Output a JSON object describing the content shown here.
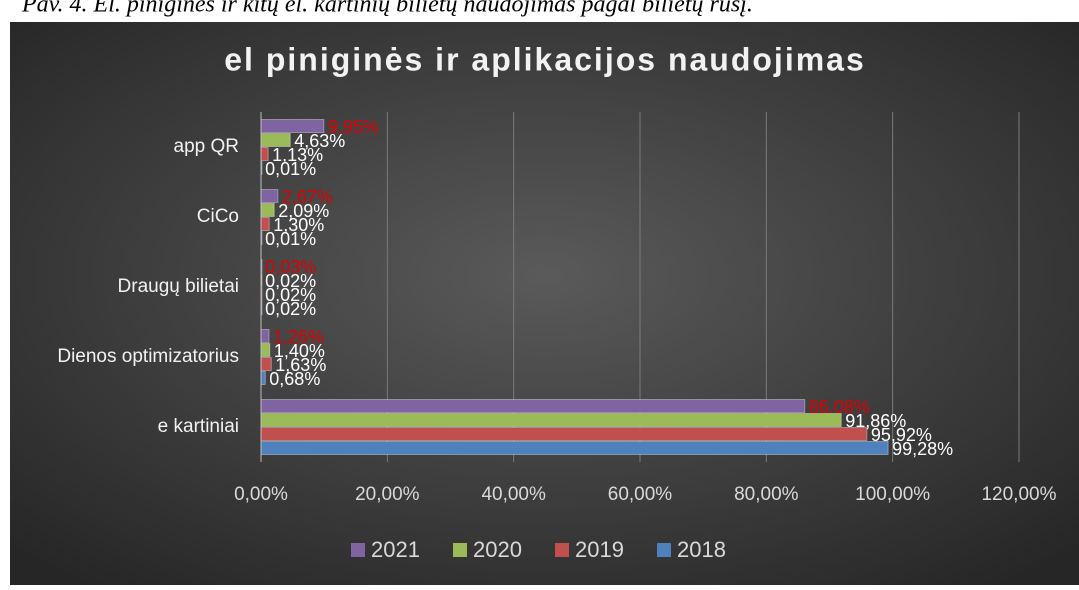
{
  "caption": "Pav. 4. El. piniginės ir kitų el. kartinių bilietų naudojimas pagal bilietų rūšį.",
  "chart_data": {
    "type": "hbar",
    "title": "el piniginės ir aplikacijos naudojimas",
    "categories": [
      "app QR",
      "CiCo",
      "Draugų bilietai",
      "Dienos optimizatorius",
      "e kartiniai"
    ],
    "series": [
      {
        "name": "2021",
        "color": "#8064a2",
        "label_color": "#e00000",
        "values": [
          9.95,
          2.67,
          0.03,
          1.26,
          86.08
        ],
        "value_labels": [
          "9,95%",
          "2,67%",
          "0,03%",
          "1,26%",
          "86,08%"
        ]
      },
      {
        "name": "2020",
        "color": "#9bbb59",
        "label_color": "#ffffff",
        "values": [
          4.63,
          2.09,
          0.02,
          1.4,
          91.86
        ],
        "value_labels": [
          "4,63%",
          "2,09%",
          "0,02%",
          "1,40%",
          "91,86%"
        ]
      },
      {
        "name": "2019",
        "color": "#c0504d",
        "label_color": "#ffffff",
        "values": [
          1.13,
          1.3,
          0.02,
          1.63,
          95.92
        ],
        "value_labels": [
          "1,13%",
          "1,30%",
          "0,02%",
          "1,63%",
          "95,92%"
        ]
      },
      {
        "name": "2018",
        "color": "#4f81bd",
        "label_color": "#ffffff",
        "values": [
          0.01,
          0.01,
          0.02,
          0.68,
          99.28
        ],
        "value_labels": [
          "0,01%",
          "0,01%",
          "0,02%",
          "0,68%",
          "99,28%"
        ]
      }
    ],
    "xlim": [
      0,
      120
    ],
    "xticks": [
      {
        "value": 0,
        "label": "0,00%"
      },
      {
        "value": 20,
        "label": "20,00%"
      },
      {
        "value": 40,
        "label": "40,00%"
      },
      {
        "value": 60,
        "label": "60,00%"
      },
      {
        "value": 80,
        "label": "80,00%"
      },
      {
        "value": 100,
        "label": "100,00%"
      },
      {
        "value": 120,
        "label": "120,00%"
      }
    ],
    "grid": true,
    "legend": "bottom"
  }
}
